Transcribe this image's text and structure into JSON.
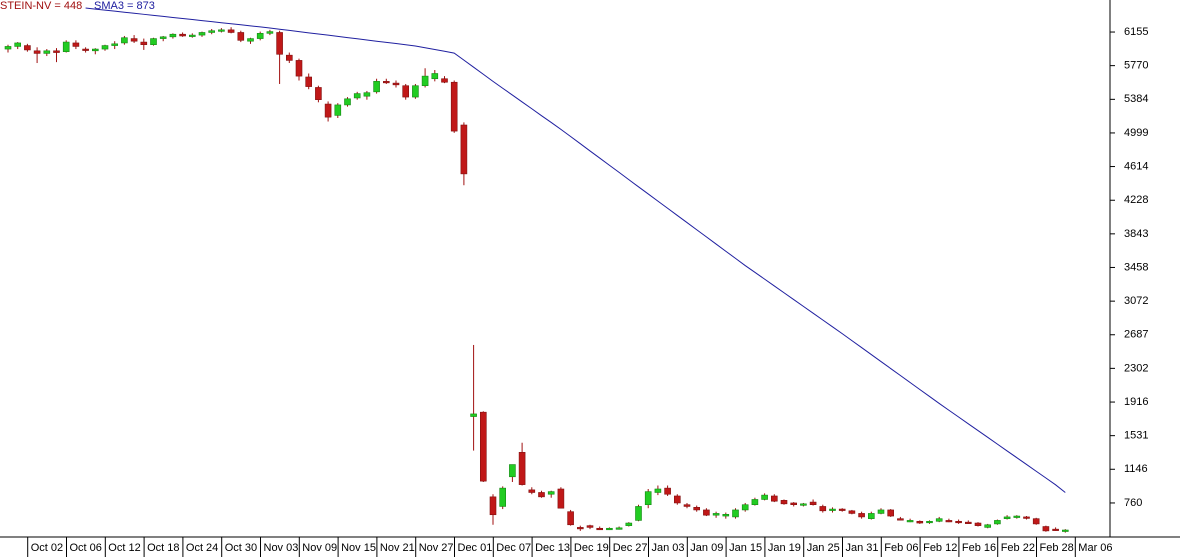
{
  "chart_data": {
    "type": "candlestick",
    "categories": [
      null,
      "Oct 02",
      null,
      null,
      null,
      "Oct 06",
      null,
      null,
      null,
      "Oct 12",
      null,
      null,
      null,
      "Oct 18",
      null,
      null,
      null,
      "Oct 24",
      null,
      null,
      null,
      "Oct 30",
      null,
      null,
      null,
      "Nov 03",
      null,
      null,
      null,
      "Nov 09",
      null,
      null,
      null,
      "Nov 15",
      null,
      null,
      null,
      "Nov 21",
      null,
      null,
      null,
      "Nov 27",
      null,
      null,
      null,
      "Dec 01",
      null,
      null,
      null,
      "Dec 07",
      null,
      null,
      null,
      "Dec 13",
      null,
      null,
      null,
      "Dec 19",
      null,
      null,
      null,
      "Dec 27",
      null,
      null,
      null,
      "Jan 03",
      null,
      null,
      null,
      "Jan 09",
      null,
      null,
      null,
      "Jan 15",
      null,
      null,
      null,
      "Jan 19",
      null,
      null,
      null,
      "Jan 25",
      null,
      null,
      null,
      "Jan 31",
      null,
      null,
      null,
      "Feb 06",
      null,
      null,
      null,
      "Feb 12",
      null,
      null,
      null,
      "Feb 16",
      null,
      null,
      null,
      "Feb 22",
      null,
      null,
      null,
      "Feb 28",
      null,
      null,
      null,
      "Mar 06"
    ],
    "ylim": [
      370,
      6522
    ],
    "yticks": [
      760,
      1146,
      1531,
      1916,
      2302,
      2687,
      3072,
      3458,
      3843,
      4228,
      4614,
      4999,
      5384,
      5770,
      6155
    ],
    "series": [
      {
        "name": "STEIN-NV = 448",
        "color": "#a01010",
        "up_color": "#22cc22",
        "down_color": "#c01818",
        "ohlc": [
          [
            5960,
            6010,
            5920,
            5990
          ],
          [
            5990,
            6040,
            5960,
            6030
          ],
          [
            6000,
            6020,
            5930,
            5950
          ],
          [
            5940,
            5980,
            5800,
            5910
          ],
          [
            5910,
            5960,
            5880,
            5940
          ],
          [
            5940,
            5970,
            5810,
            5920
          ],
          [
            5930,
            6060,
            5920,
            6040
          ],
          [
            6030,
            6060,
            5960,
            5990
          ],
          [
            5960,
            5980,
            5920,
            5950
          ],
          [
            5940,
            5970,
            5900,
            5960
          ],
          [
            5960,
            6010,
            5940,
            6000
          ],
          [
            6000,
            6050,
            5960,
            6020
          ],
          [
            6030,
            6110,
            6010,
            6090
          ],
          [
            6080,
            6120,
            6030,
            6050
          ],
          [
            6040,
            6080,
            5950,
            6010
          ],
          [
            6010,
            6090,
            6000,
            6080
          ],
          [
            6080,
            6110,
            6050,
            6100
          ],
          [
            6100,
            6140,
            6080,
            6130
          ],
          [
            6130,
            6150,
            6100,
            6110
          ],
          [
            6110,
            6140,
            6090,
            6120
          ],
          [
            6120,
            6160,
            6100,
            6150
          ],
          [
            6150,
            6190,
            6130,
            6170
          ],
          [
            6170,
            6200,
            6150,
            6180
          ],
          [
            6180,
            6210,
            6140,
            6150
          ],
          [
            6150,
            6170,
            6040,
            6060
          ],
          [
            6050,
            6090,
            6020,
            6080
          ],
          [
            6080,
            6160,
            6060,
            6140
          ],
          [
            6140,
            6180,
            6120,
            6160
          ],
          [
            6150,
            6170,
            5560,
            5900
          ],
          [
            5890,
            5920,
            5800,
            5830
          ],
          [
            5830,
            5850,
            5600,
            5650
          ],
          [
            5640,
            5680,
            5500,
            5530
          ],
          [
            5520,
            5540,
            5350,
            5380
          ],
          [
            5330,
            5360,
            5130,
            5180
          ],
          [
            5200,
            5340,
            5170,
            5320
          ],
          [
            5320,
            5410,
            5300,
            5390
          ],
          [
            5400,
            5470,
            5380,
            5450
          ],
          [
            5420,
            5480,
            5380,
            5460
          ],
          [
            5470,
            5620,
            5450,
            5590
          ],
          [
            5590,
            5620,
            5560,
            5580
          ],
          [
            5570,
            5600,
            5520,
            5550
          ],
          [
            5540,
            5560,
            5380,
            5410
          ],
          [
            5410,
            5560,
            5390,
            5540
          ],
          [
            5540,
            5740,
            5520,
            5650
          ],
          [
            5620,
            5720,
            5590,
            5680
          ],
          [
            5620,
            5650,
            5570,
            5580
          ],
          [
            5580,
            5600,
            5000,
            5020
          ],
          [
            5090,
            5120,
            4400,
            4530
          ],
          [
            1750,
            2570,
            1360,
            1780
          ],
          [
            1800,
            1810,
            1000,
            1010
          ],
          [
            830,
            860,
            510,
            625
          ],
          [
            720,
            950,
            690,
            930
          ],
          [
            1060,
            1200,
            1000,
            1200
          ],
          [
            1340,
            1450,
            960,
            970
          ],
          [
            910,
            940,
            860,
            880
          ],
          [
            880,
            900,
            820,
            830
          ],
          [
            860,
            900,
            820,
            890
          ],
          [
            920,
            940,
            700,
            700
          ],
          [
            660,
            680,
            500,
            510
          ],
          [
            480,
            500,
            440,
            465
          ],
          [
            500,
            510,
            460,
            480
          ],
          [
            470,
            490,
            450,
            465
          ],
          [
            460,
            480,
            450,
            470
          ],
          [
            470,
            490,
            455,
            475
          ],
          [
            500,
            540,
            490,
            530
          ],
          [
            560,
            740,
            550,
            720
          ],
          [
            740,
            920,
            700,
            890
          ],
          [
            880,
            960,
            850,
            920
          ],
          [
            930,
            960,
            840,
            860
          ],
          [
            840,
            860,
            740,
            760
          ],
          [
            740,
            760,
            700,
            720
          ],
          [
            710,
            730,
            660,
            680
          ],
          [
            680,
            700,
            610,
            620
          ],
          [
            620,
            660,
            590,
            640
          ],
          [
            610,
            650,
            580,
            630
          ],
          [
            600,
            700,
            580,
            680
          ],
          [
            680,
            760,
            660,
            740
          ],
          [
            740,
            820,
            730,
            800
          ],
          [
            800,
            870,
            790,
            850
          ],
          [
            840,
            860,
            770,
            780
          ],
          [
            790,
            800,
            740,
            750
          ],
          [
            760,
            770,
            720,
            740
          ],
          [
            740,
            760,
            720,
            750
          ],
          [
            770,
            800,
            730,
            740
          ],
          [
            720,
            740,
            650,
            670
          ],
          [
            680,
            710,
            650,
            690
          ],
          [
            690,
            700,
            660,
            680
          ],
          [
            670,
            680,
            630,
            640
          ],
          [
            640,
            660,
            580,
            600
          ],
          [
            580,
            660,
            570,
            640
          ],
          [
            640,
            700,
            630,
            680
          ],
          [
            680,
            690,
            600,
            610
          ],
          [
            580,
            600,
            560,
            570
          ],
          [
            560,
            580,
            540,
            560
          ],
          [
            550,
            560,
            520,
            530
          ],
          [
            540,
            560,
            520,
            550
          ],
          [
            550,
            600,
            540,
            580
          ],
          [
            560,
            580,
            540,
            550
          ],
          [
            550,
            570,
            520,
            540
          ],
          [
            540,
            560,
            520,
            530
          ],
          [
            530,
            540,
            490,
            500
          ],
          [
            480,
            520,
            470,
            510
          ],
          [
            520,
            570,
            510,
            560
          ],
          [
            580,
            620,
            570,
            600
          ],
          [
            600,
            620,
            580,
            610
          ],
          [
            600,
            610,
            570,
            590
          ],
          [
            580,
            590,
            510,
            520
          ],
          [
            490,
            500,
            430,
            440
          ],
          [
            460,
            480,
            440,
            450
          ],
          [
            440,
            460,
            420,
            450
          ]
        ]
      },
      {
        "name": "SMA3 = 873",
        "color": "#2020a0",
        "values": [
          null,
          null,
          null,
          null,
          null,
          null,
          null,
          null,
          6430,
          6418,
          6406,
          6394,
          6382,
          6370,
          6358,
          6346,
          6334,
          6322,
          6310,
          6298,
          6286,
          6274,
          6262,
          6250,
          6238,
          6226,
          6214,
          6201,
          6187,
          6174,
          6160,
          6146,
          6133,
          6119,
          6105,
          6091,
          6078,
          6064,
          6050,
          6036,
          6023,
          6009,
          5995,
          5975,
          5955,
          5935,
          5914,
          5833,
          5752,
          5671,
          5590,
          5511,
          5433,
          5354,
          5276,
          5197,
          5119,
          5040,
          4958,
          4876,
          4793,
          4711,
          4629,
          4547,
          4464,
          4382,
          4300,
          4218,
          4136,
          4054,
          3972,
          3890,
          3808,
          3726,
          3644,
          3562,
          3480,
          3402,
          3324,
          3246,
          3168,
          3090,
          3012,
          2934,
          2856,
          2778,
          2700,
          2620,
          2540,
          2460,
          2380,
          2300,
          2220,
          2140,
          2060,
          1980,
          1900,
          1822,
          1745,
          1667,
          1589,
          1512,
          1434,
          1356,
          1279,
          1201,
          1123,
          1046,
          968,
          880
        ]
      }
    ]
  }
}
